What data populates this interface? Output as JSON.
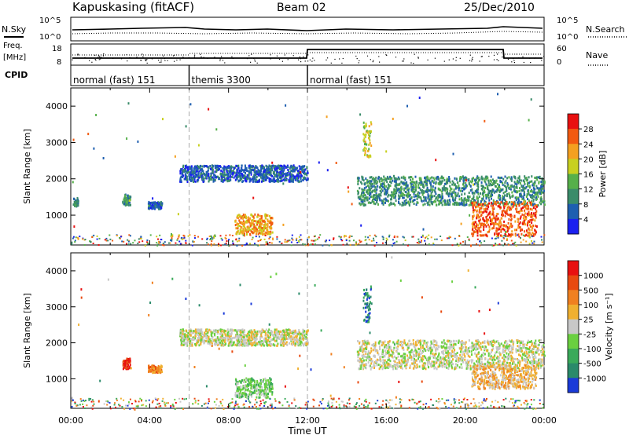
{
  "header": {
    "station": "Kapuskasing (fitACF)",
    "beam": "Beam 02",
    "date": "25/Dec/2010"
  },
  "housekeeping": {
    "nsky_label": "N.Sky",
    "nsearch_label": "N.Search",
    "nsky_ticks": [
      "10^5",
      "10^0"
    ],
    "nsearch_ticks": [
      "10^5",
      "10^0"
    ],
    "freq_label_1": "Freq.",
    "freq_label_2": "[MHz]",
    "freq_ticks": [
      "18",
      "8"
    ],
    "nave_label": "Nave",
    "nave_ticks": [
      "60",
      "0"
    ],
    "cpid_label": "CPID",
    "cpid_segments": [
      {
        "label": "normal (fast) 151",
        "start": 0,
        "end": 6
      },
      {
        "label": "themis 3300",
        "start": 6,
        "end": 12
      },
      {
        "label": "normal (fast) 151",
        "start": 12,
        "end": 24
      }
    ]
  },
  "chart_data": [
    {
      "type": "heatmap",
      "panel": "power",
      "ylabel": "Slant Range [km]",
      "xlabel": "Time UT",
      "x_ticks": [
        "00:00",
        "04:00",
        "08:00",
        "12:00",
        "16:00",
        "20:00",
        "00:00"
      ],
      "xlim": [
        0,
        24
      ],
      "ylim": [
        180,
        4500
      ],
      "y_ticks": [
        1000,
        2000,
        3000,
        4000
      ],
      "colorbar": {
        "label": "Power [dB]",
        "ticks": [
          "4",
          "8",
          "12",
          "16",
          "20",
          "24",
          "28"
        ],
        "colors": [
          "#1b20f0",
          "#1e5fb0",
          "#3a8c6a",
          "#56b04a",
          "#c8d020",
          "#f4a020",
          "#f25a10",
          "#e81010"
        ]
      },
      "scatter_bands": [
        {
          "t": [
            0.1,
            0.35
          ],
          "r": [
            1250,
            1500
          ],
          "level": 2
        },
        {
          "t": [
            2.6,
            3.0
          ],
          "r": [
            1300,
            1600
          ],
          "level": 2
        },
        {
          "t": [
            3.9,
            4.6
          ],
          "r": [
            1200,
            1400
          ],
          "level": 1
        },
        {
          "t": [
            5.5,
            12.0
          ],
          "r": [
            1950,
            2400
          ],
          "level": 1
        },
        {
          "t": [
            8.3,
            10.2
          ],
          "r": [
            500,
            1050
          ],
          "level": 5
        },
        {
          "t": [
            14.8,
            15.2
          ],
          "r": [
            2600,
            3600
          ],
          "level": 4
        },
        {
          "t": [
            14.5,
            24.0
          ],
          "r": [
            1300,
            2100
          ],
          "level": 2
        },
        {
          "t": [
            20.3,
            23.6
          ],
          "r": [
            450,
            1400
          ],
          "level": 6
        }
      ]
    },
    {
      "type": "heatmap",
      "panel": "velocity",
      "ylabel": "Slant Range [km]",
      "xlabel": "Time UT",
      "x_ticks": [
        "00:00",
        "04:00",
        "08:00",
        "12:00",
        "16:00",
        "20:00",
        "00:00"
      ],
      "xlim": [
        0,
        24
      ],
      "ylim": [
        180,
        4500
      ],
      "y_ticks": [
        1000,
        2000,
        3000,
        4000
      ],
      "colorbar": {
        "label": "Velocity [m s⁻¹]",
        "ticks": [
          "1000",
          "500",
          "100",
          "25",
          "-25",
          "-100",
          "-500",
          "-1000"
        ],
        "colors": [
          "#1a3ad8",
          "#2a8a6a",
          "#3aaa5a",
          "#6ad040",
          "#c8c8c8",
          "#f0b030",
          "#f08020",
          "#e84a10",
          "#e81010"
        ]
      },
      "scatter_bands": [
        {
          "t": [
            2.6,
            3.0
          ],
          "r": [
            1300,
            1600
          ],
          "level": 8
        },
        {
          "t": [
            3.9,
            4.6
          ],
          "r": [
            1200,
            1400
          ],
          "level": 6
        },
        {
          "t": [
            5.5,
            12.0
          ],
          "r": [
            1950,
            2400
          ],
          "level": 4
        },
        {
          "t": [
            8.3,
            10.2
          ],
          "r": [
            500,
            1050
          ],
          "level": 3
        },
        {
          "t": [
            14.8,
            15.2
          ],
          "r": [
            2600,
            3600
          ],
          "level": 1
        },
        {
          "t": [
            14.5,
            24.0
          ],
          "r": [
            1300,
            2100
          ],
          "level": 4
        },
        {
          "t": [
            20.3,
            23.6
          ],
          "r": [
            750,
            1400
          ],
          "level": 5
        }
      ]
    }
  ]
}
